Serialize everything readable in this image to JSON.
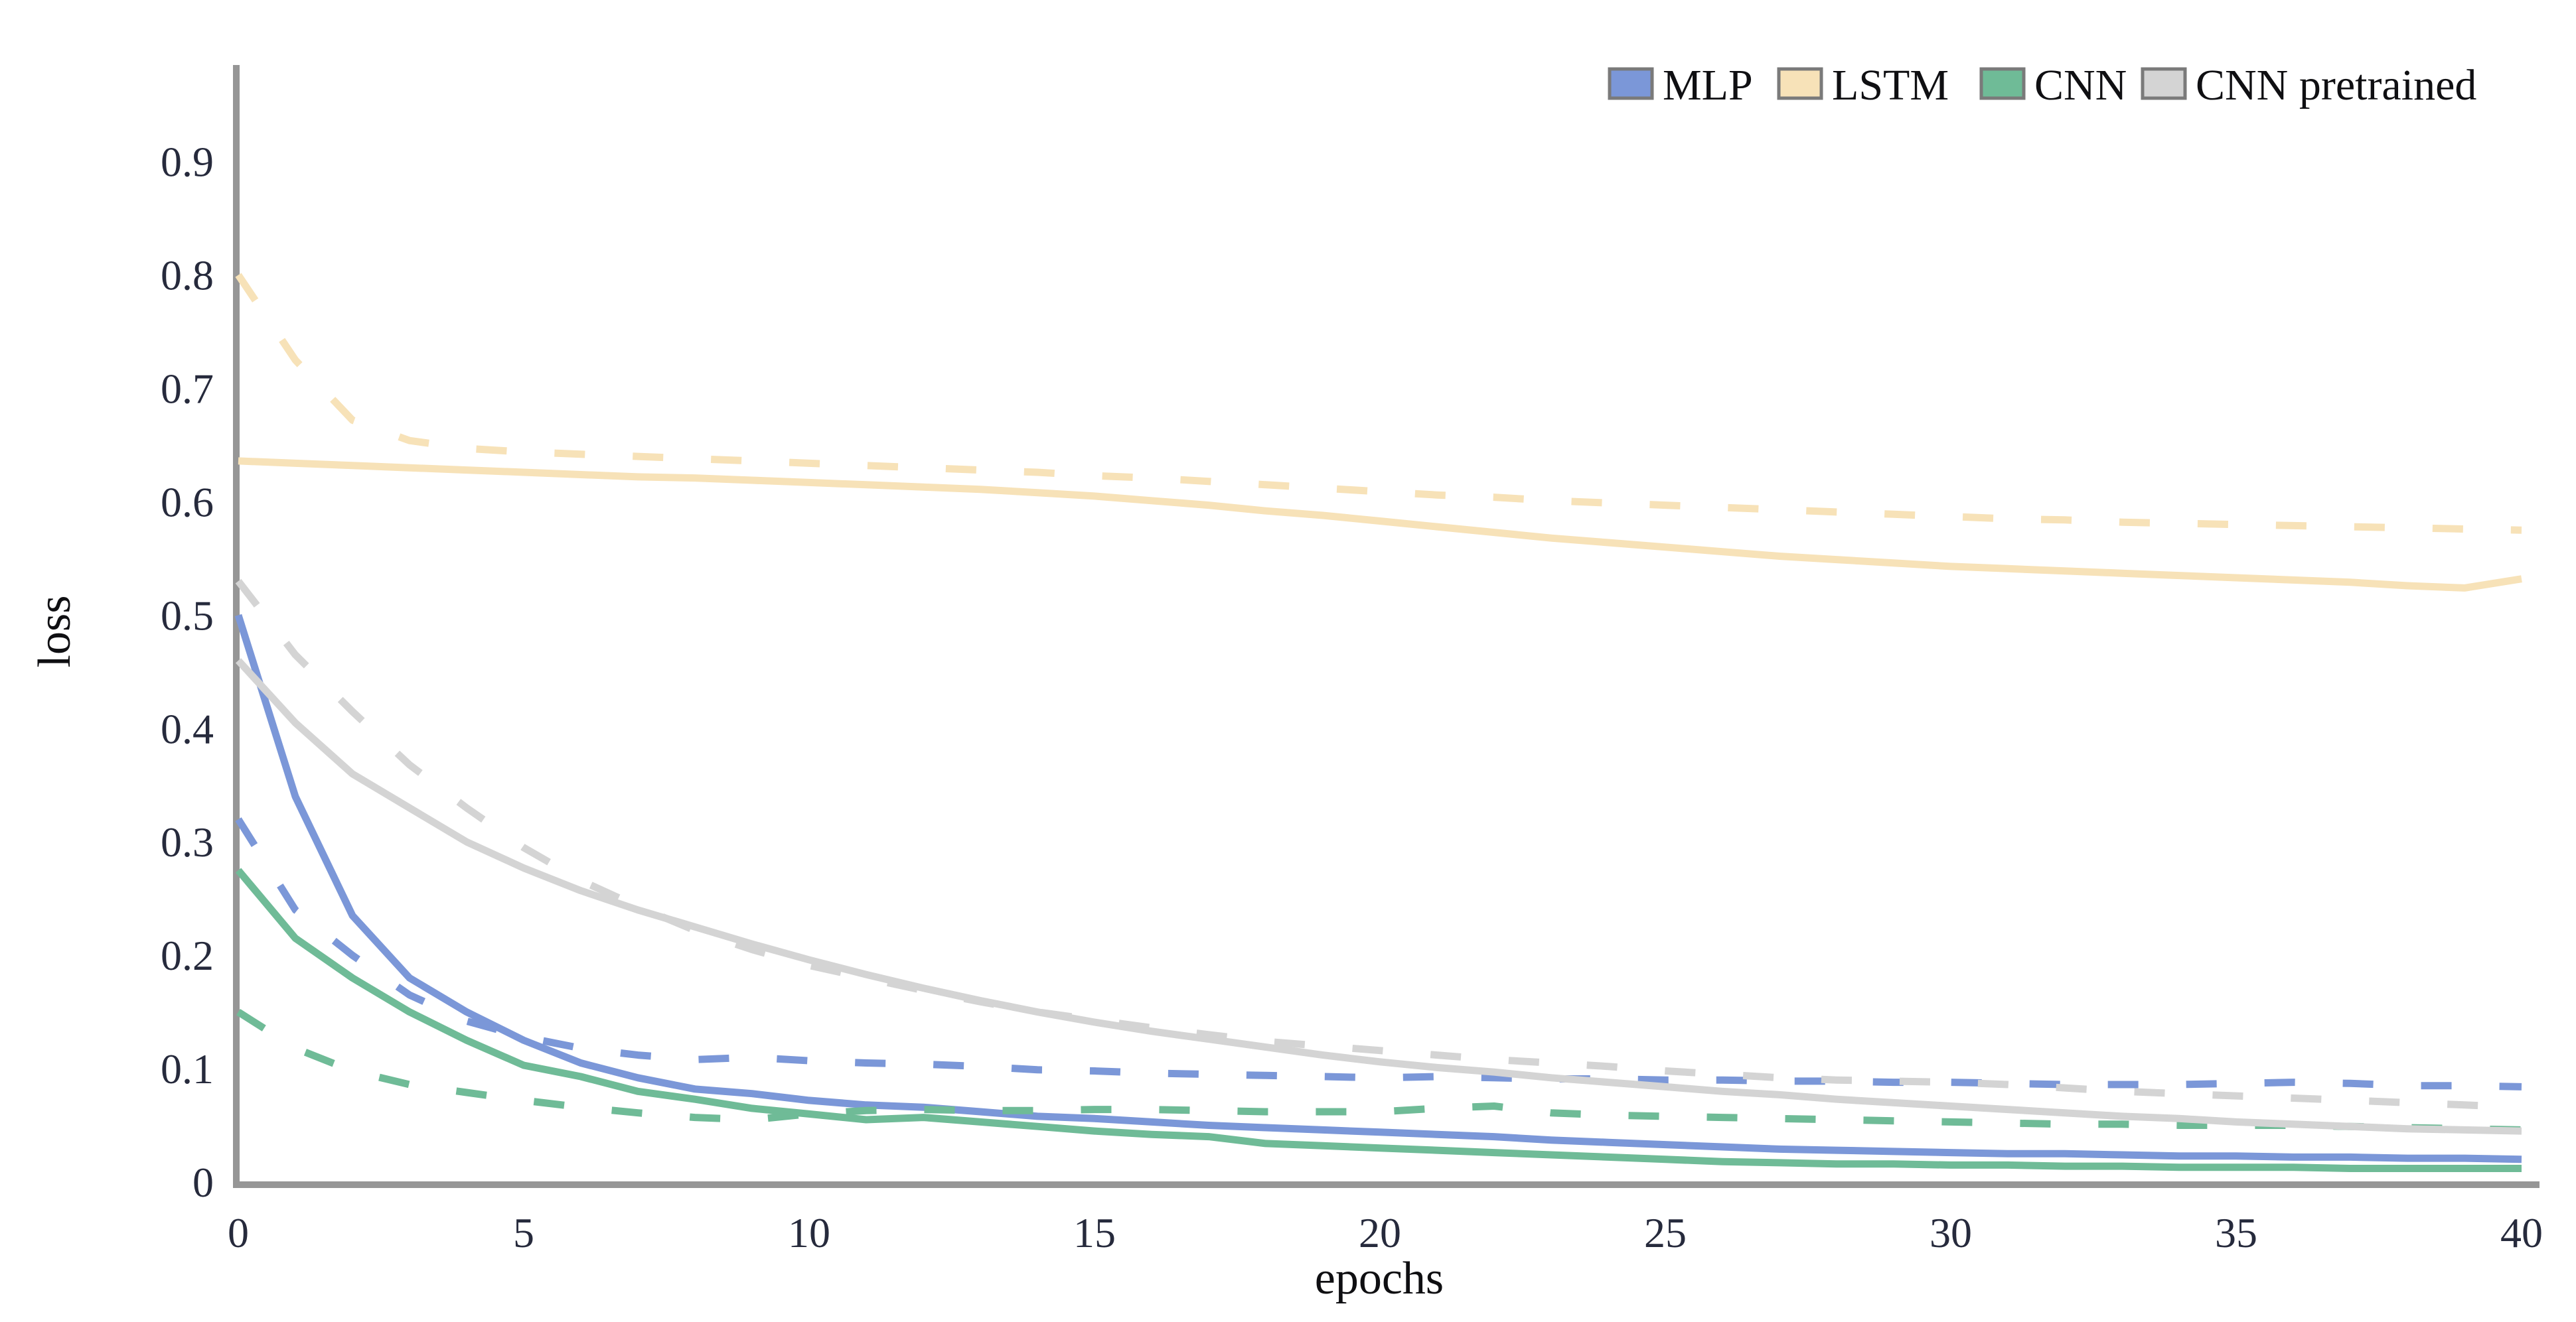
{
  "chart_data": {
    "type": "line",
    "title": "",
    "xlabel": "epochs",
    "ylabel": "loss",
    "xlim": [
      0,
      40
    ],
    "ylim": [
      0,
      0.98
    ],
    "grid": false,
    "legend_position": "top-right-horizontal",
    "xticks": [
      "0",
      "5",
      "10",
      "15",
      "20",
      "25",
      "30",
      "35",
      "40"
    ],
    "xtick_values": [
      0,
      5,
      10,
      15,
      20,
      25,
      30,
      35,
      40
    ],
    "yticks": [
      "0",
      "0.1",
      "0.2",
      "0.3",
      "0.4",
      "0.5",
      "0.6",
      "0.7",
      "0.8",
      "0.9"
    ],
    "ytick_values": [
      0,
      0.1,
      0.2,
      0.3,
      0.4,
      0.5,
      0.6,
      0.7,
      0.8,
      0.9
    ],
    "x": [
      0,
      1,
      2,
      3,
      4,
      5,
      6,
      7,
      8,
      9,
      10,
      11,
      12,
      13,
      14,
      15,
      16,
      17,
      18,
      19,
      20,
      21,
      22,
      23,
      24,
      25,
      26,
      27,
      28,
      29,
      30,
      31,
      32,
      33,
      34,
      35,
      36,
      37,
      38,
      39,
      40
    ],
    "legend": [
      {
        "label": "MLP",
        "color": "#7b97d8"
      },
      {
        "label": "LSTM",
        "color": "#f7e2b8"
      },
      {
        "label": "CNN",
        "color": "#6fbb97"
      },
      {
        "label": "CNN pretrained",
        "color": "#d4d4d4"
      }
    ],
    "series": [
      {
        "name": "MLP train",
        "legend": "MLP",
        "color": "#7b97d8",
        "style": "solid",
        "values": [
          0.5,
          0.34,
          0.235,
          0.18,
          0.15,
          0.125,
          0.105,
          0.092,
          0.082,
          0.078,
          0.072,
          0.068,
          0.066,
          0.062,
          0.058,
          0.056,
          0.053,
          0.05,
          0.048,
          0.046,
          0.044,
          0.042,
          0.04,
          0.037,
          0.035,
          0.033,
          0.031,
          0.029,
          0.028,
          0.027,
          0.026,
          0.025,
          0.025,
          0.024,
          0.023,
          0.023,
          0.022,
          0.022,
          0.021,
          0.021,
          0.02
        ]
      },
      {
        "name": "MLP validation",
        "legend": "MLP",
        "color": "#7b97d8",
        "style": "dashed",
        "values": [
          0.32,
          0.24,
          0.2,
          0.165,
          0.142,
          0.128,
          0.118,
          0.112,
          0.108,
          0.11,
          0.107,
          0.105,
          0.104,
          0.102,
          0.099,
          0.098,
          0.096,
          0.095,
          0.094,
          0.093,
          0.092,
          0.093,
          0.092,
          0.091,
          0.091,
          0.09,
          0.09,
          0.089,
          0.089,
          0.088,
          0.088,
          0.087,
          0.086,
          0.086,
          0.086,
          0.087,
          0.088,
          0.087,
          0.085,
          0.085,
          0.084
        ]
      },
      {
        "name": "LSTM train",
        "legend": "LSTM",
        "color": "#f7e2b8",
        "style": "solid",
        "values": [
          0.636,
          0.634,
          0.632,
          0.63,
          0.628,
          0.626,
          0.624,
          0.622,
          0.621,
          0.619,
          0.617,
          0.615,
          0.613,
          0.611,
          0.608,
          0.605,
          0.601,
          0.597,
          0.592,
          0.588,
          0.583,
          0.578,
          0.573,
          0.568,
          0.564,
          0.56,
          0.556,
          0.552,
          0.549,
          0.546,
          0.543,
          0.541,
          0.539,
          0.537,
          0.535,
          0.533,
          0.531,
          0.529,
          0.526,
          0.524,
          0.532
        ]
      },
      {
        "name": "LSTM validation",
        "legend": "LSTM",
        "color": "#f7e2b8",
        "style": "dashed",
        "values": [
          0.8,
          0.725,
          0.672,
          0.654,
          0.647,
          0.644,
          0.642,
          0.64,
          0.638,
          0.636,
          0.634,
          0.632,
          0.63,
          0.628,
          0.626,
          0.623,
          0.621,
          0.618,
          0.615,
          0.612,
          0.609,
          0.606,
          0.604,
          0.601,
          0.599,
          0.597,
          0.595,
          0.593,
          0.591,
          0.589,
          0.587,
          0.585,
          0.584,
          0.582,
          0.581,
          0.58,
          0.579,
          0.578,
          0.577,
          0.576,
          0.575
        ]
      },
      {
        "name": "CNN train",
        "legend": "CNN",
        "color": "#6fbb97",
        "style": "solid",
        "values": [
          0.275,
          0.215,
          0.18,
          0.15,
          0.125,
          0.103,
          0.093,
          0.08,
          0.073,
          0.065,
          0.06,
          0.055,
          0.057,
          0.053,
          0.049,
          0.045,
          0.042,
          0.04,
          0.034,
          0.032,
          0.03,
          0.028,
          0.026,
          0.024,
          0.022,
          0.02,
          0.018,
          0.017,
          0.016,
          0.016,
          0.015,
          0.015,
          0.014,
          0.014,
          0.013,
          0.013,
          0.013,
          0.012,
          0.012,
          0.012,
          0.012
        ]
      },
      {
        "name": "CNN validation",
        "legend": "CNN",
        "color": "#6fbb97",
        "style": "dashed",
        "values": [
          0.15,
          0.118,
          0.098,
          0.086,
          0.079,
          0.072,
          0.066,
          0.061,
          0.057,
          0.055,
          0.06,
          0.063,
          0.064,
          0.063,
          0.063,
          0.064,
          0.064,
          0.063,
          0.062,
          0.062,
          0.062,
          0.065,
          0.067,
          0.061,
          0.059,
          0.058,
          0.057,
          0.056,
          0.055,
          0.054,
          0.053,
          0.052,
          0.051,
          0.051,
          0.05,
          0.05,
          0.05,
          0.049,
          0.048,
          0.047,
          0.046
        ]
      },
      {
        "name": "CNN pretrained train",
        "legend": "CNN pretrained",
        "color": "#d4d4d4",
        "style": "solid",
        "values": [
          0.46,
          0.405,
          0.36,
          0.33,
          0.3,
          0.277,
          0.257,
          0.24,
          0.225,
          0.21,
          0.196,
          0.183,
          0.171,
          0.16,
          0.15,
          0.141,
          0.133,
          0.126,
          0.119,
          0.112,
          0.106,
          0.101,
          0.097,
          0.092,
          0.088,
          0.084,
          0.08,
          0.077,
          0.073,
          0.07,
          0.067,
          0.064,
          0.061,
          0.058,
          0.056,
          0.053,
          0.051,
          0.049,
          0.047,
          0.046,
          0.045
        ]
      },
      {
        "name": "CNN pretrained validation",
        "legend": "CNN pretrained",
        "color": "#d4d4d4",
        "style": "dashed",
        "values": [
          0.53,
          0.465,
          0.415,
          0.368,
          0.33,
          0.295,
          0.266,
          0.243,
          0.222,
          0.205,
          0.191,
          0.18,
          0.169,
          0.159,
          0.15,
          0.143,
          0.136,
          0.13,
          0.124,
          0.12,
          0.116,
          0.112,
          0.108,
          0.105,
          0.102,
          0.098,
          0.095,
          0.092,
          0.09,
          0.089,
          0.088,
          0.086,
          0.083,
          0.08,
          0.078,
          0.076,
          0.074,
          0.072,
          0.07,
          0.068,
          0.066
        ]
      }
    ],
    "colors": {
      "background": "#ffffff",
      "spine": "#969696",
      "tick_text": "#262a3c",
      "label_text": "#0f0f12",
      "legend_patch_border": "#7a7a7a"
    },
    "line_style_note": "solid = training loss, dashed = validation loss"
  }
}
